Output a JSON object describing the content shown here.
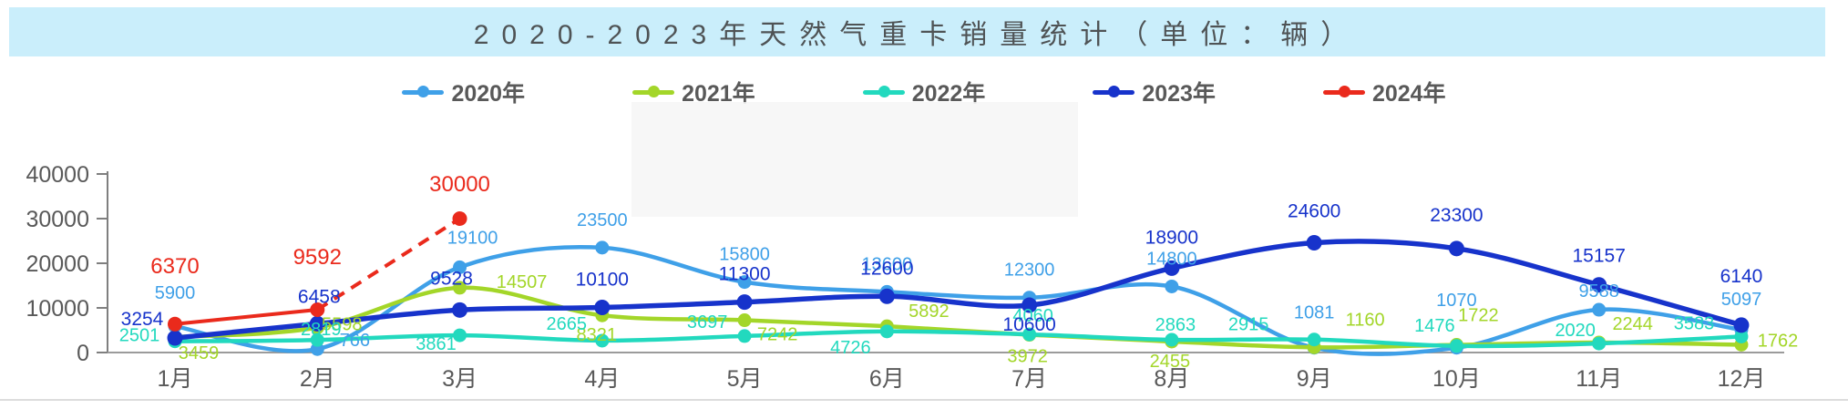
{
  "title": {
    "text": "2020-2023年天然气重卡销量统计（单位：辆）"
  },
  "axis": {
    "y_ticks": [
      "40000",
      "30000",
      "20000",
      "10000",
      "0"
    ],
    "x_labels": [
      "1月",
      "2月",
      "3月",
      "4月",
      "5月",
      "6月",
      "7月",
      "8月",
      "9月",
      "10月",
      "11月",
      "12月"
    ]
  },
  "chart_data": {
    "type": "line",
    "title": "2020-2023年天然气重卡销量统计（单位：辆）",
    "categories": [
      "1月",
      "2月",
      "3月",
      "4月",
      "5月",
      "6月",
      "7月",
      "8月",
      "9月",
      "10月",
      "11月",
      "12月"
    ],
    "series": [
      {
        "name": "2020年",
        "color": "#3FA0E8",
        "values": [
          5900,
          766,
          19100,
          23500,
          15800,
          13600,
          12300,
          14800,
          1081,
          1070,
          9588,
          5097
        ],
        "line": "solid"
      },
      {
        "name": "2021年",
        "color": "#A3D629",
        "values": [
          3459,
          5598,
          14507,
          8321,
          7242,
          5892,
          3972,
          2455,
          1160,
          1722,
          2244,
          1762
        ],
        "line": "solid"
      },
      {
        "name": "2022年",
        "color": "#22D9BE",
        "values": [
          2501,
          2819,
          3861,
          2665,
          3697,
          4726,
          4060,
          2863,
          2915,
          1476,
          2020,
          3583
        ],
        "line": "solid"
      },
      {
        "name": "2023年",
        "color": "#1733CB",
        "values": [
          3254,
          6458,
          9528,
          10100,
          11300,
          12600,
          10600,
          18900,
          24600,
          23300,
          15157,
          6140
        ],
        "line": "solid"
      },
      {
        "name": "2024年",
        "color": "#EA2A1C",
        "values": [
          6370,
          9592,
          30000
        ],
        "line": "solid",
        "dashed_from_index": 1
      }
    ],
    "ylim": [
      0,
      40000
    ],
    "yticks": [
      0,
      10000,
      20000,
      30000,
      40000
    ],
    "grid": false,
    "legend_position": "top"
  }
}
